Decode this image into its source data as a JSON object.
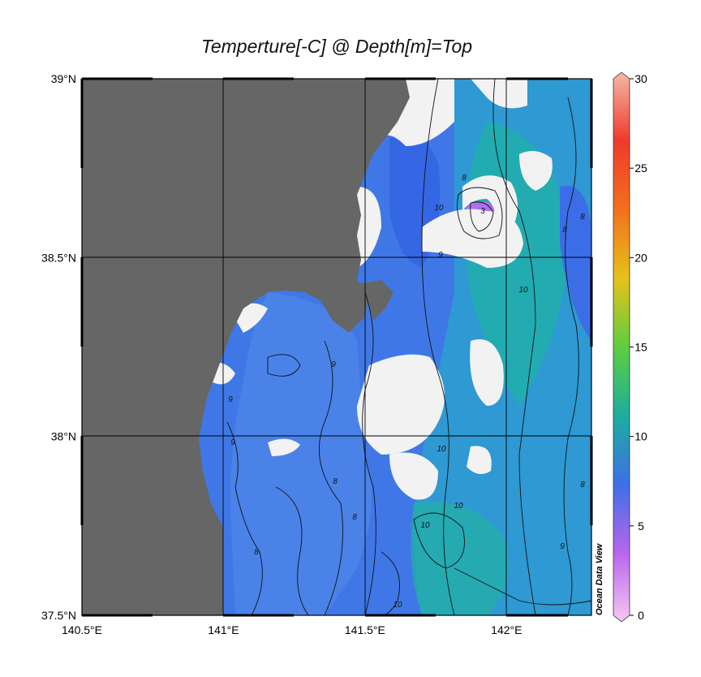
{
  "chart_data": {
    "type": "heatmap",
    "title": "Temperture[-C] @ Depth[m]=Top",
    "x_ticks": [
      "140.5°E",
      "141°E",
      "141.5°E",
      "142°E"
    ],
    "y_ticks": [
      "37.5°N",
      "38°N",
      "38.5°N",
      "39°N"
    ],
    "xlim": [
      140.5,
      142.3
    ],
    "ylim": [
      37.5,
      39.0
    ],
    "colorbar": {
      "ticks": [
        "0",
        "5",
        "10",
        "15",
        "20",
        "25",
        "30"
      ],
      "range": [
        0,
        30
      ],
      "colors": [
        "#f7c7f2",
        "#b866ec",
        "#3e6fe8",
        "#1cae9e",
        "#5dce40",
        "#e6c21a",
        "#f3701c",
        "#ef3a2a",
        "#f6b8a8"
      ]
    },
    "contour_labels": [
      "3",
      "8",
      "8",
      "8",
      "8",
      "8",
      "8",
      "8",
      "9",
      "9",
      "9",
      "9",
      "9",
      "10",
      "10",
      "10",
      "10",
      "10",
      "10"
    ],
    "grid": true,
    "land_color": "#666666",
    "missing_color": "#f2f2f2",
    "watermark": "Ocean Data View"
  }
}
